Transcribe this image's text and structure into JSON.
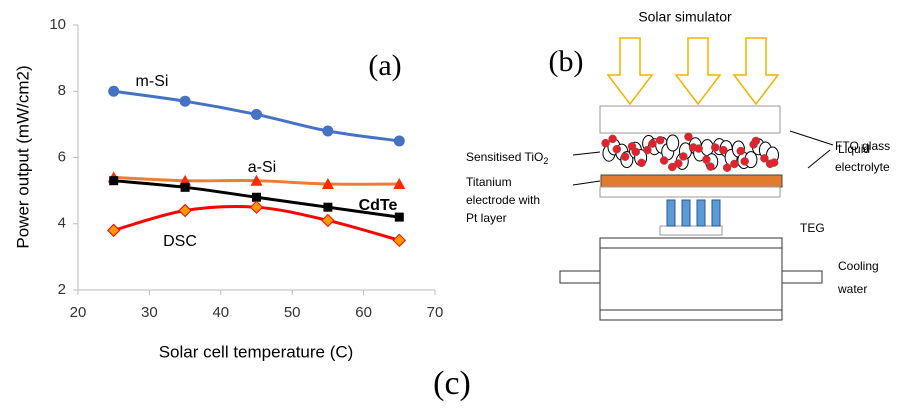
{
  "chart_data": {
    "type": "line",
    "panel_label": "(a)",
    "x_label": "Solar cell temperature (C)",
    "y_label": "Power output (mW/cm2)",
    "x": [
      25,
      35,
      45,
      55,
      65
    ],
    "xlim": [
      20,
      70
    ],
    "xticks": [
      20,
      30,
      40,
      50,
      60,
      70
    ],
    "ylim": [
      2,
      10
    ],
    "yticks": [
      2,
      4,
      6,
      8,
      10
    ],
    "series": [
      {
        "name": "m-Si",
        "color": "#4472c4",
        "marker": "circle",
        "marker_color": "#4472c4",
        "values": [
          8.0,
          7.7,
          7.3,
          6.8,
          6.5
        ]
      },
      {
        "name": "a-Si",
        "color": "#ed7d31",
        "marker": "triangle",
        "marker_color": "#ff2a00",
        "values": [
          5.4,
          5.3,
          5.3,
          5.2,
          5.2
        ]
      },
      {
        "name": "CdTe",
        "color": "#000000",
        "marker": "square",
        "marker_color": "#000000",
        "values": [
          5.3,
          5.1,
          4.8,
          4.5,
          4.2
        ]
      },
      {
        "name": "DSC",
        "color": "#ff0000",
        "marker": "diamond",
        "marker_color": "#ff9900",
        "values": [
          3.8,
          4.4,
          4.5,
          4.1,
          3.5
        ]
      }
    ]
  },
  "diagram": {
    "panel_label": "(b)",
    "source": "Solar simulator",
    "fto": "FTO glass",
    "tio2": {
      "text": "Sensitised TiO",
      "subscript": "2"
    },
    "electrolyte": [
      "Liquid",
      "electrolyte"
    ],
    "electrode": [
      "Titanium",
      "electrode with",
      "Pt layer"
    ],
    "teg": "TEG",
    "cooling": [
      "Cooling",
      "water"
    ]
  },
  "caption": "(c)"
}
